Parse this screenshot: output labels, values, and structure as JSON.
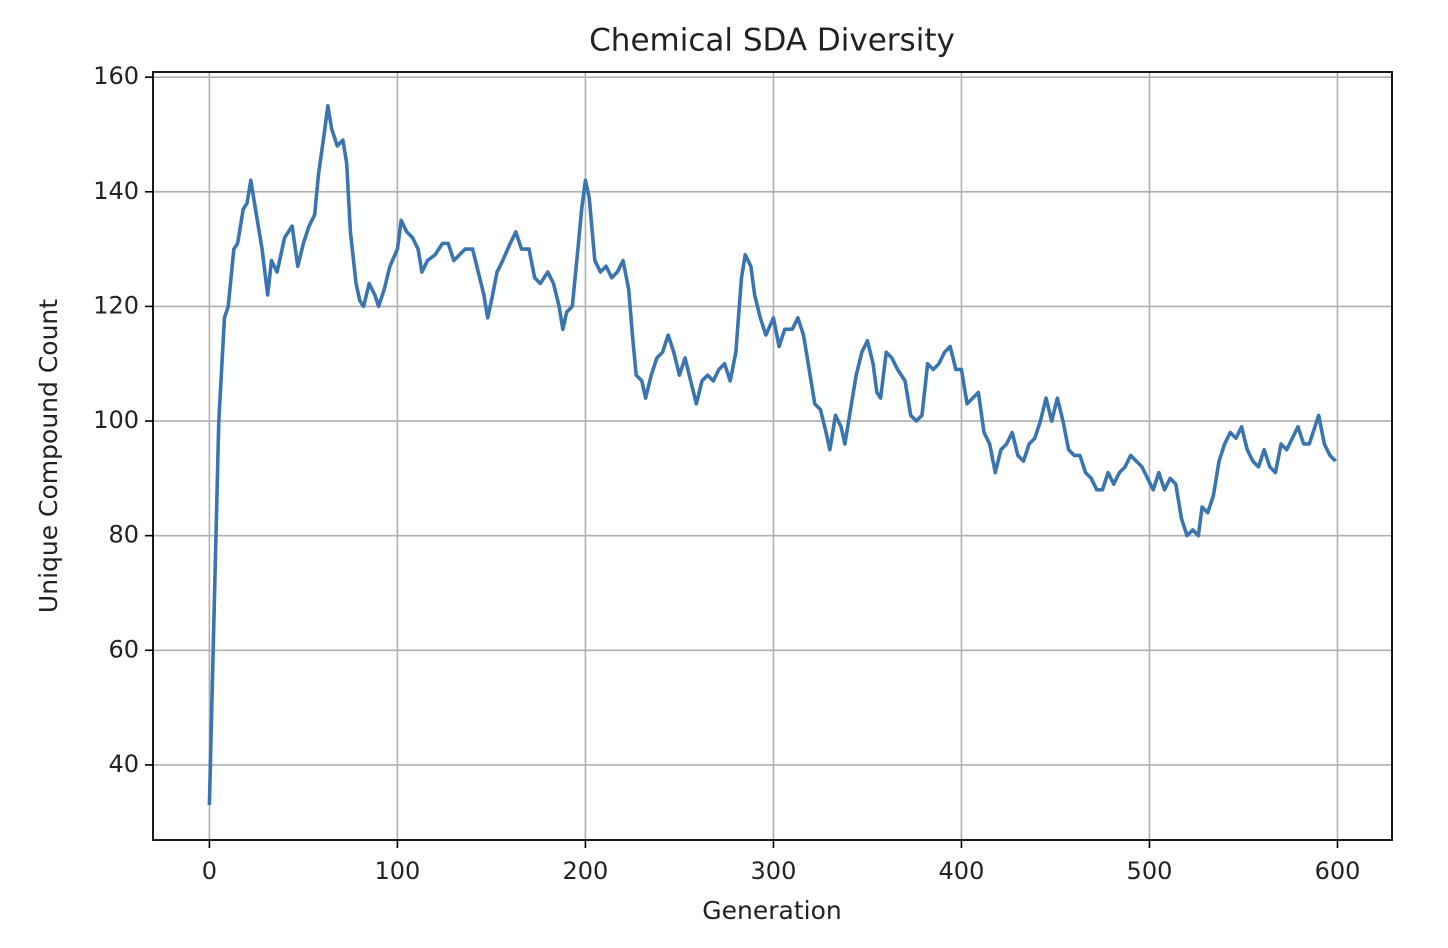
{
  "chart_data": {
    "type": "line",
    "title": "Chemical SDA Diversity",
    "x_label": "Generation",
    "y_label": "Unique Compound Count",
    "xlim": [
      -30,
      629
    ],
    "ylim": [
      26.9,
      160.9
    ],
    "xticks": [
      0,
      100,
      200,
      300,
      400,
      500,
      600
    ],
    "yticks": [
      40,
      60,
      80,
      100,
      120,
      140,
      160
    ],
    "grid": true,
    "series": [
      {
        "color": "#3a75b0",
        "x": [
          0,
          2,
          5,
          8,
          10,
          13,
          15,
          18,
          20,
          22,
          25,
          28,
          31,
          33,
          36,
          40,
          44,
          47,
          50,
          53,
          56,
          58,
          61,
          63,
          65,
          68,
          71,
          73,
          75,
          78,
          80,
          82,
          85,
          88,
          90,
          93,
          96,
          100,
          102,
          105,
          108,
          111,
          113,
          116,
          120,
          124,
          127,
          130,
          133,
          136,
          140,
          143,
          146,
          148,
          150,
          153,
          156,
          160,
          163,
          166,
          170,
          173,
          176,
          180,
          183,
          186,
          188,
          190,
          193,
          196,
          198,
          200,
          202,
          205,
          208,
          211,
          214,
          217,
          220,
          223,
          225,
          227,
          230,
          232,
          235,
          238,
          241,
          244,
          247,
          250,
          253,
          256,
          259,
          262,
          265,
          268,
          271,
          274,
          277,
          280,
          283,
          285,
          288,
          290,
          293,
          296,
          300,
          303,
          306,
          310,
          313,
          316,
          319,
          322,
          325,
          328,
          330,
          333,
          336,
          338,
          341,
          344,
          347,
          350,
          353,
          355,
          357,
          360,
          363,
          366,
          370,
          373,
          376,
          379,
          382,
          385,
          388,
          391,
          394,
          397,
          400,
          403,
          406,
          409,
          412,
          415,
          418,
          421,
          424,
          427,
          430,
          433,
          436,
          439,
          442,
          445,
          448,
          451,
          454,
          457,
          460,
          463,
          466,
          469,
          472,
          475,
          478,
          481,
          484,
          487,
          490,
          493,
          496,
          499,
          502,
          505,
          508,
          511,
          514,
          517,
          520,
          523,
          526,
          528,
          531,
          534,
          537,
          540,
          543,
          546,
          549,
          552,
          555,
          558,
          561,
          564,
          567,
          570,
          573,
          576,
          579,
          582,
          585,
          588,
          590,
          593,
          596,
          599
        ],
        "values": [
          33,
          60,
          100,
          118,
          120,
          130,
          131,
          137,
          138,
          142,
          136,
          130,
          122,
          128,
          126,
          132,
          134,
          127,
          131,
          134,
          136,
          143,
          150,
          155,
          151,
          148,
          149,
          145,
          133,
          124,
          121,
          120,
          124,
          122,
          120,
          123,
          127,
          130,
          135,
          133,
          132,
          130,
          126,
          128,
          129,
          131,
          131,
          128,
          129,
          130,
          130,
          126,
          122,
          118,
          121,
          126,
          128,
          131,
          133,
          130,
          130,
          125,
          124,
          126,
          124,
          120,
          116,
          119,
          120,
          130,
          137,
          142,
          139,
          128,
          126,
          127,
          125,
          126,
          128,
          123,
          115,
          108,
          107,
          104,
          108,
          111,
          112,
          115,
          112,
          108,
          111,
          107,
          103,
          107,
          108,
          107,
          109,
          110,
          107,
          112,
          125,
          129,
          127,
          122,
          118,
          115,
          118,
          113,
          116,
          116,
          118,
          115,
          109,
          103,
          102,
          98,
          95,
          101,
          99,
          96,
          102,
          108,
          112,
          114,
          110,
          105,
          104,
          112,
          111,
          109,
          107,
          101,
          100,
          101,
          110,
          109,
          110,
          112,
          113,
          109,
          109,
          103,
          104,
          105,
          98,
          96,
          91,
          95,
          96,
          98,
          94,
          93,
          96,
          97,
          100,
          104,
          100,
          104,
          100,
          95,
          94,
          94,
          91,
          90,
          88,
          88,
          91,
          89,
          91,
          92,
          94,
          93,
          92,
          90,
          88,
          91,
          88,
          90,
          89,
          83,
          80,
          81,
          80,
          85,
          84,
          87,
          93,
          96,
          98,
          97,
          99,
          95,
          93,
          92,
          95,
          92,
          91,
          96,
          95,
          97,
          99,
          96,
          96,
          99,
          101,
          96,
          94,
          93
        ]
      }
    ]
  }
}
